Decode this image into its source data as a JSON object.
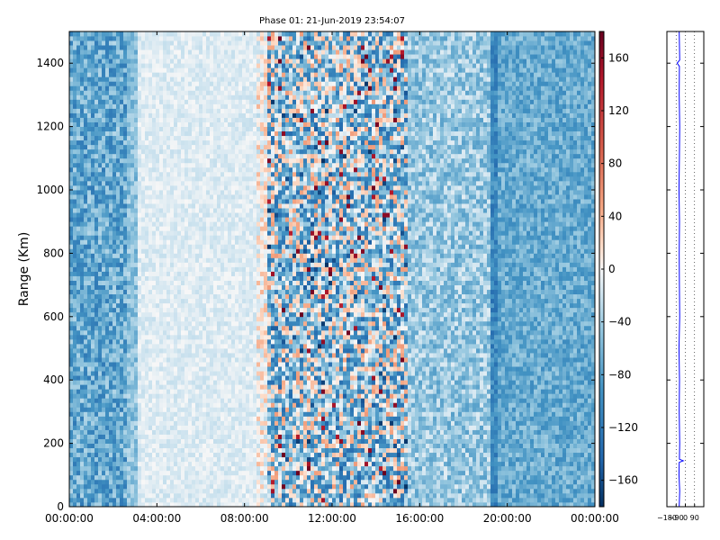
{
  "chart_data": [
    {
      "type": "heatmap",
      "title": "Phase 01: 21-Jun-2019 23:54:07",
      "xlabel": "",
      "ylabel": "Range (Km)",
      "x_ticks": [
        "00:00:00",
        "04:00:00",
        "08:00:00",
        "12:00:00",
        "16:00:00",
        "20:00:00",
        "00:00:00"
      ],
      "x_range_hours": [
        0,
        24
      ],
      "y_ticks": [
        0,
        200,
        400,
        600,
        800,
        1000,
        1200,
        1400
      ],
      "ylim": [
        0,
        1500
      ],
      "colorbar": {
        "ticks": [
          -160,
          -120,
          -80,
          -40,
          0,
          40,
          80,
          120,
          160
        ],
        "range": [
          -180,
          180
        ],
        "colormap": "RdBu_r"
      },
      "column_profile_hours": [
        {
          "x0": 0.0,
          "x1": 2.7,
          "mean": -75,
          "spread": 45
        },
        {
          "x0": 2.7,
          "x1": 3.2,
          "mean": -50,
          "spread": 25
        },
        {
          "x0": 3.2,
          "x1": 8.5,
          "mean": -12,
          "spread": 12
        },
        {
          "x0": 8.5,
          "x1": 9.0,
          "mean": 5,
          "spread": 35
        },
        {
          "x0": 9.0,
          "x1": 15.5,
          "mean": -40,
          "spread": 95
        },
        {
          "x0": 15.5,
          "x1": 19.2,
          "mean": -45,
          "spread": 35
        },
        {
          "x0": 19.2,
          "x1": 19.6,
          "mean": -105,
          "spread": 30
        },
        {
          "x0": 19.6,
          "x1": 24.0,
          "mean": -70,
          "spread": 30
        }
      ]
    },
    {
      "type": "line",
      "title": "",
      "xlabel": "",
      "ylabel": "",
      "x_ticks": [
        -180,
        -90,
        0,
        90
      ],
      "xlim": [
        -180,
        180
      ],
      "ylim": [
        0,
        1500
      ],
      "y_ticks": [
        0,
        200,
        400,
        600,
        800,
        1000,
        1200,
        1400
      ],
      "series": [
        {
          "color": "#0000ff",
          "range_km": [
            0,
            50,
            100,
            140,
            145,
            150,
            200,
            300,
            400,
            500,
            600,
            700,
            800,
            900,
            1000,
            1100,
            1200,
            1300,
            1390,
            1400,
            1410,
            1500
          ],
          "phase_deg": [
            -60,
            -55,
            -62,
            -60,
            -20,
            -58,
            -55,
            -60,
            -57,
            -62,
            -55,
            -58,
            -60,
            -57,
            -62,
            -58,
            -55,
            -60,
            -58,
            -80,
            -55,
            -60
          ]
        }
      ]
    }
  ],
  "colors": {
    "axis": "#000000",
    "series_line": "#0000ff",
    "gridline": "#000000"
  }
}
